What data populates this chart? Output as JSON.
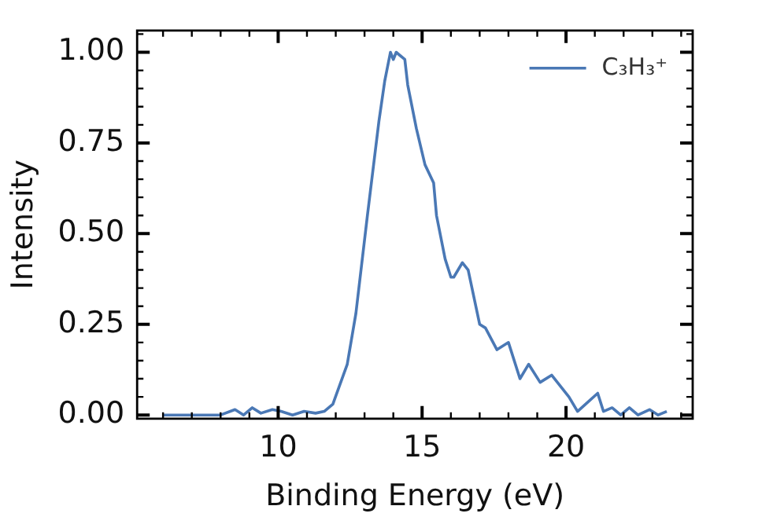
{
  "chart_data": {
    "type": "line",
    "xlabel": "Binding Energy (eV)",
    "ylabel": "Intensity",
    "xlim": [
      5.1,
      24.4
    ],
    "xticks": [
      10,
      15,
      20
    ],
    "ylim": [
      -0.01,
      1.06
    ],
    "yticks": [
      {
        "value": 0,
        "label": "0.00"
      },
      {
        "value": 0.25,
        "label": "0.25"
      },
      {
        "value": 0.5,
        "label": "0.50"
      },
      {
        "value": 0.75,
        "label": "0.75"
      },
      {
        "value": 1,
        "label": "1.00"
      }
    ],
    "legend": "top right",
    "grid": false,
    "marker": "none",
    "line_style": "solid",
    "series": [
      {
        "name": "C₃H₃⁺",
        "color": "#4a78b5",
        "x": [
          6,
          7,
          8,
          8.5,
          8.8,
          9.1,
          9.4,
          9.8,
          10.1,
          10.5,
          10.9,
          11.3,
          11.6,
          11.9,
          12.4,
          12.7,
          13.1,
          13.5,
          13.7,
          13.9,
          14.0,
          14.1,
          14.4,
          14.5,
          14.8,
          15.1,
          15.4,
          15.5,
          15.8,
          16.0,
          16.1,
          16.4,
          16.6,
          17.0,
          17.2,
          17.6,
          18.0,
          18.4,
          18.7,
          19.1,
          19.5,
          20.1,
          20.4,
          21.1,
          21.3,
          21.6,
          21.9,
          22.2,
          22.5,
          22.9,
          23.2,
          23.5
        ],
        "values": [
          0.0,
          0.0,
          0.0,
          0.015,
          0.0,
          0.02,
          0.005,
          0.015,
          0.01,
          0.0,
          0.01,
          0.005,
          0.01,
          0.03,
          0.14,
          0.28,
          0.55,
          0.81,
          0.92,
          1.0,
          0.98,
          1.0,
          0.98,
          0.91,
          0.79,
          0.69,
          0.64,
          0.55,
          0.43,
          0.38,
          0.38,
          0.42,
          0.4,
          0.25,
          0.24,
          0.18,
          0.2,
          0.1,
          0.14,
          0.09,
          0.11,
          0.05,
          0.01,
          0.06,
          0.01,
          0.02,
          0.0,
          0.02,
          0.0,
          0.015,
          0.0,
          0.01
        ]
      }
    ]
  }
}
